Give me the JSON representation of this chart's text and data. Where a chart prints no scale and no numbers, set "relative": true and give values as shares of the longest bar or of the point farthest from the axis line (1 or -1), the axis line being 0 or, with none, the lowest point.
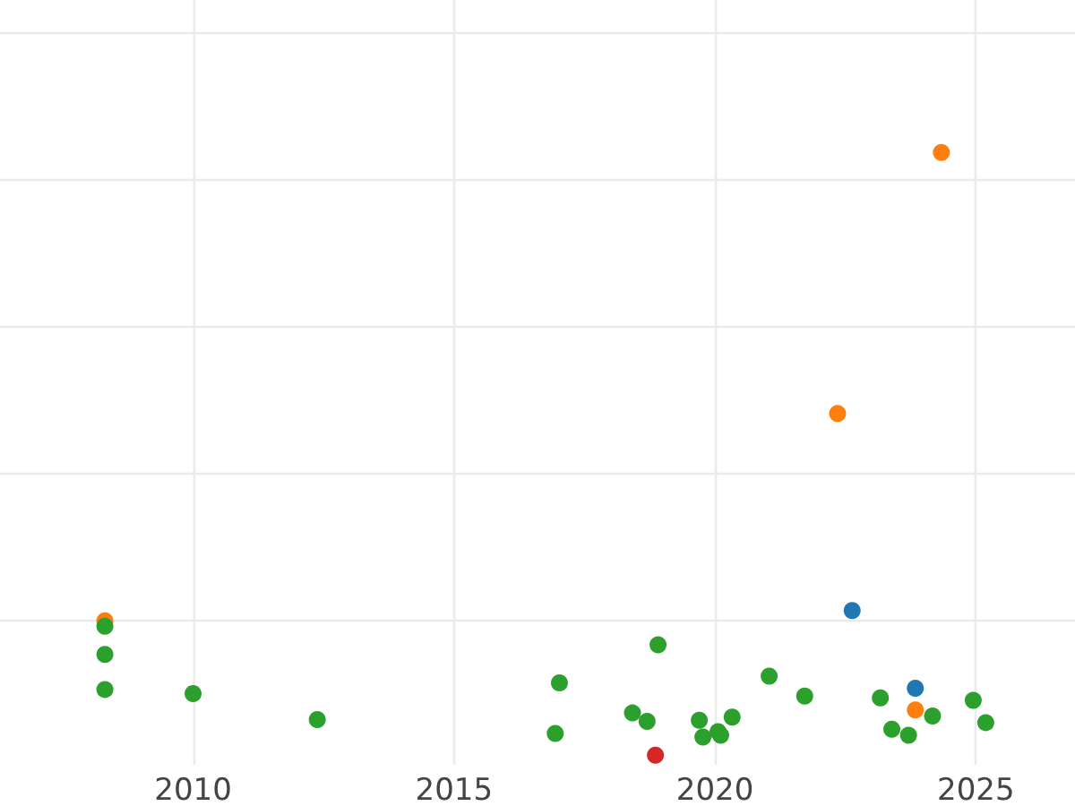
{
  "chart_data": {
    "type": "scatter",
    "relative": true,
    "grid": true,
    "marker": "circle",
    "xlim": [
      2006.3,
      2026.9
    ],
    "xticks": [
      2010,
      2015,
      2020,
      2025
    ],
    "series": [
      {
        "color": "#ff7f0e",
        "x": [
          2008.31,
          2022.35,
          2024.34,
          2023.84
        ],
        "values": [
          0.223,
          0.567,
          1,
          0.075
        ]
      },
      {
        "color": "#2ca02c",
        "x": [
          2008.31,
          2008.31,
          2008.31,
          2010.0,
          2012.38,
          2017.02,
          2016.94,
          2018.91,
          2018.42,
          2018.7,
          2019.7,
          2019.77,
          2020.06,
          2020.11,
          2020.33,
          2021.04,
          2021.72,
          2023.17,
          2024.17,
          2023.39,
          2023.71,
          2024.95,
          2025.19
        ],
        "values": [
          0.214,
          0.167,
          0.109,
          0.102,
          0.059,
          0.12,
          0.036,
          0.183,
          0.07,
          0.056,
          0.058,
          0.03,
          0.039,
          0.033,
          0.063,
          0.131,
          0.098,
          0.095,
          0.065,
          0.043,
          0.033,
          0.091,
          0.054
        ]
      },
      {
        "color": "#1f77b4",
        "x": [
          2022.63,
          2023.84
        ],
        "values": [
          0.24,
          0.111
        ]
      },
      {
        "color": "#d62728",
        "x": [
          2018.86
        ],
        "values": [
          0
        ]
      }
    ]
  }
}
